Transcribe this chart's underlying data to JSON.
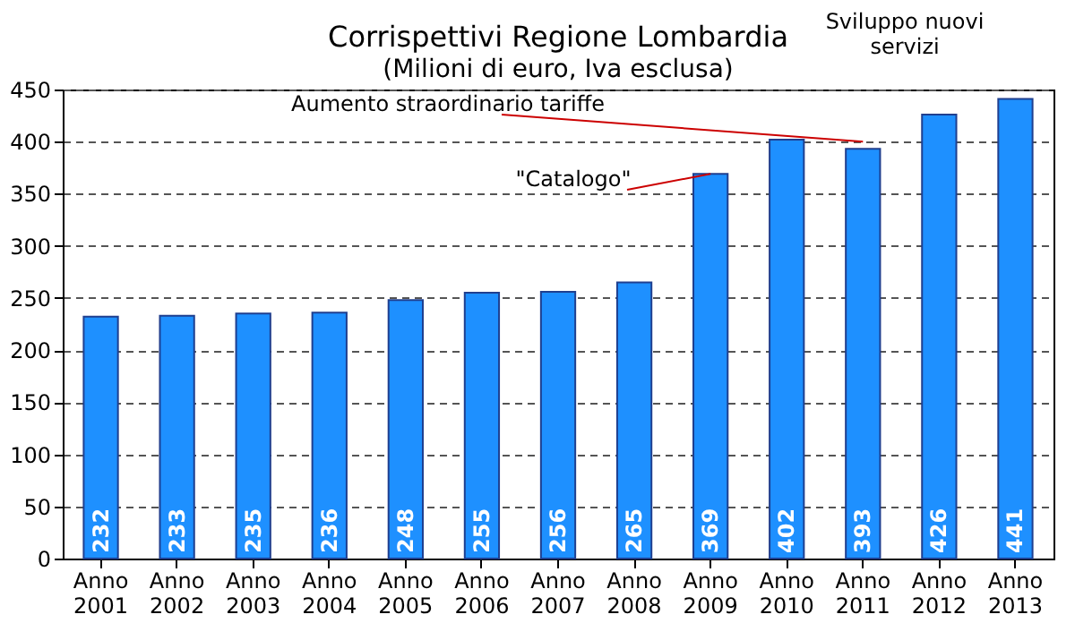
{
  "chart_data": {
    "type": "bar",
    "title": "Corrispettivi  Regione Lombardia",
    "subtitle": "(Milioni di euro, Iva esclusa)",
    "categories": [
      "Anno 2001",
      "Anno 2002",
      "Anno 2003",
      "Anno 2004",
      "Anno 2005",
      "Anno 2006",
      "Anno 2007",
      "Anno 2008",
      "Anno 2009",
      "Anno 2010",
      "Anno 2011",
      "Anno 2012",
      "Anno 2013"
    ],
    "values": [
      232,
      233,
      235,
      236,
      248,
      255,
      256,
      265,
      369,
      402,
      393,
      426,
      441
    ],
    "color": "#1e90ff",
    "ylim": [
      0,
      450
    ],
    "yticks": [
      0,
      50,
      100,
      150,
      200,
      250,
      300,
      350,
      400,
      450
    ],
    "grid": "y",
    "data_labels": true,
    "annotations": [
      {
        "text": "Aumento straordinario tariffe",
        "x": "Anno 2011",
        "y": 400
      },
      {
        "text": "\"Catalogo\"",
        "x": "Anno 2009",
        "y": 369
      },
      "Sviluppo nuovi servizi"
    ]
  }
}
